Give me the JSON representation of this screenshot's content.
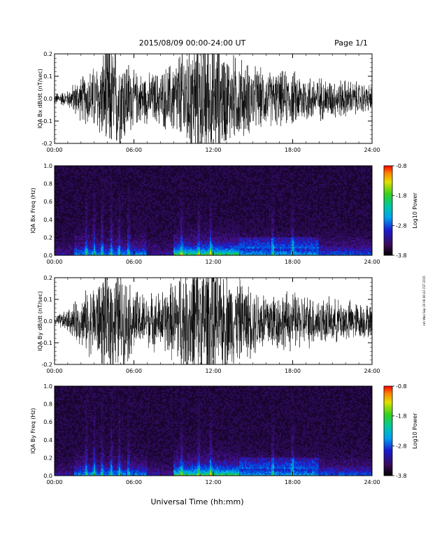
{
  "header": {
    "title": "2015/08/09  00:00-24:00 UT",
    "page": "Page 1/1"
  },
  "footer": {
    "xlabel": "Universal Time (hh:mm)",
    "side_stamp": "roh Wed Sep 16 06:06:43 CST 2015"
  },
  "chart_data": [
    {
      "type": "line",
      "panel": "bx-waveform",
      "ylabel": "IQA Bx dB/dt (nT/sec)",
      "xlim": [
        0,
        24
      ],
      "ylim": [
        -0.2,
        0.2
      ],
      "xticks": [
        "00:00",
        "06:00",
        "12:00",
        "18:00",
        "24:00"
      ],
      "yticks": [
        "-0.2",
        "-0.1",
        "0.0",
        "0.1",
        "0.2"
      ],
      "ytick_values": [
        -0.2,
        -0.1,
        0.0,
        0.1,
        0.2
      ],
      "envelope": {
        "hours": [
          0,
          1,
          1.5,
          2,
          2.5,
          3,
          3.5,
          4,
          4.5,
          5,
          5.5,
          6,
          7,
          8,
          9,
          9.5,
          10,
          10.5,
          11,
          11.5,
          12,
          12.5,
          13,
          14,
          15,
          16,
          17,
          18,
          19,
          20,
          21,
          22,
          23,
          24
        ],
        "amplitude": [
          0.02,
          0.03,
          0.06,
          0.08,
          0.1,
          0.12,
          0.15,
          0.22,
          0.2,
          0.18,
          0.15,
          0.1,
          0.09,
          0.1,
          0.14,
          0.18,
          0.22,
          0.22,
          0.25,
          0.25,
          0.22,
          0.2,
          0.17,
          0.15,
          0.12,
          0.1,
          0.1,
          0.1,
          0.09,
          0.08,
          0.07,
          0.07,
          0.06,
          0.05
        ]
      }
    },
    {
      "type": "heatmap",
      "panel": "bx-spectrogram",
      "ylabel": "IQA Bx Freq (Hz)",
      "xlim": [
        0,
        24
      ],
      "ylim": [
        0,
        1.0
      ],
      "xticks": [
        "00:00",
        "06:00",
        "12:00",
        "18:00",
        "24:00"
      ],
      "yticks": [
        "0.0",
        "0.2",
        "0.4",
        "0.6",
        "0.8",
        "1.0"
      ],
      "ytick_values": [
        0,
        0.2,
        0.4,
        0.6,
        0.8,
        1.0
      ],
      "colorbar": {
        "label": "Log10 Power",
        "ticks": [
          "-0.8",
          "-1.8",
          "-2.8",
          "-3.8"
        ],
        "range": [
          -3.8,
          -0.8
        ]
      }
    },
    {
      "type": "line",
      "panel": "by-waveform",
      "ylabel": "IQA By dB/dt (nT/sec)",
      "xlim": [
        0,
        24
      ],
      "ylim": [
        -0.2,
        0.2
      ],
      "xticks": [
        "00:00",
        "06:00",
        "12:00",
        "18:00",
        "24:00"
      ],
      "yticks": [
        "-0.2",
        "-0.1",
        "0.0",
        "0.1",
        "0.2"
      ],
      "ytick_values": [
        -0.2,
        -0.1,
        0.0,
        0.1,
        0.2
      ],
      "envelope": {
        "hours": [
          0,
          1,
          1.5,
          2,
          2.5,
          3,
          3.5,
          4,
          4.5,
          5,
          5.5,
          6,
          7,
          8,
          9,
          9.5,
          10,
          10.5,
          11,
          11.5,
          12,
          12.5,
          13,
          14,
          15,
          16,
          17,
          18,
          19,
          20,
          21,
          22,
          23,
          24
        ],
        "amplitude": [
          0.02,
          0.04,
          0.07,
          0.09,
          0.12,
          0.14,
          0.16,
          0.22,
          0.2,
          0.18,
          0.16,
          0.12,
          0.1,
          0.11,
          0.15,
          0.2,
          0.22,
          0.24,
          0.25,
          0.25,
          0.24,
          0.2,
          0.18,
          0.15,
          0.13,
          0.12,
          0.11,
          0.11,
          0.1,
          0.09,
          0.08,
          0.08,
          0.07,
          0.06
        ]
      }
    },
    {
      "type": "heatmap",
      "panel": "by-spectrogram",
      "ylabel": "IQA By Freq (Hz)",
      "xlim": [
        0,
        24
      ],
      "ylim": [
        0,
        1.0
      ],
      "xticks": [
        "00:00",
        "06:00",
        "12:00",
        "18:00",
        "24:00"
      ],
      "yticks": [
        "0.0",
        "0.2",
        "0.4",
        "0.6",
        "0.8",
        "1.0"
      ],
      "ytick_values": [
        0,
        0.2,
        0.4,
        0.6,
        0.8,
        1.0
      ],
      "colorbar": {
        "label": "Log10 Power",
        "ticks": [
          "-0.8",
          "-1.8",
          "-2.8",
          "-3.8"
        ],
        "range": [
          -3.8,
          -0.8
        ]
      }
    }
  ]
}
